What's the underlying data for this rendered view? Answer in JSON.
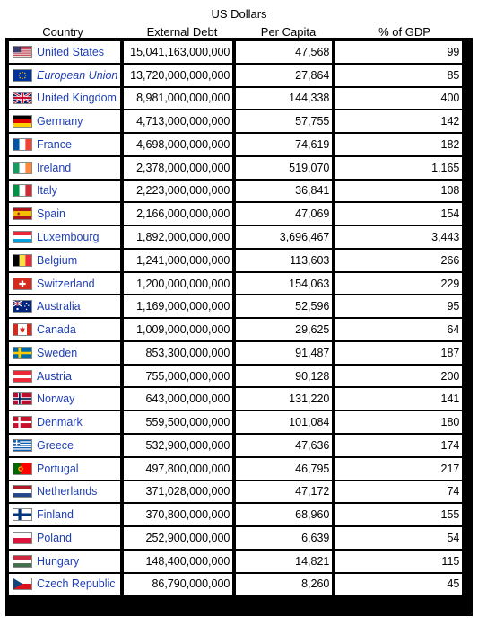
{
  "header": {
    "super": "US Dollars",
    "country": "Country",
    "external_debt": "External Debt",
    "per_capita": "Per Capita",
    "gdp": "% of GDP"
  },
  "rows": [
    {
      "country": "United States",
      "flag": "us-flag-icon",
      "debt": "15,041,163,000,000",
      "per_capita": "47,568",
      "gdp": "99",
      "italic": false
    },
    {
      "country": "European Union",
      "flag": "eu-flag-icon",
      "debt": "13,720,000,000,000",
      "per_capita": "27,864",
      "gdp": "85",
      "italic": true
    },
    {
      "country": "United Kingdom",
      "flag": "gb-flag-icon",
      "debt": "8,981,000,000,000",
      "per_capita": "144,338",
      "gdp": "400",
      "italic": false
    },
    {
      "country": "Germany",
      "flag": "de-flag-icon",
      "debt": "4,713,000,000,000",
      "per_capita": "57,755",
      "gdp": "142",
      "italic": false
    },
    {
      "country": "France",
      "flag": "fr-flag-icon",
      "debt": "4,698,000,000,000",
      "per_capita": "74,619",
      "gdp": "182",
      "italic": false
    },
    {
      "country": "Ireland",
      "flag": "ie-flag-icon",
      "debt": "2,378,000,000,000",
      "per_capita": "519,070",
      "gdp": "1,165",
      "italic": false
    },
    {
      "country": "Italy",
      "flag": "it-flag-icon",
      "debt": "2,223,000,000,000",
      "per_capita": "36,841",
      "gdp": "108",
      "italic": false
    },
    {
      "country": "Spain",
      "flag": "es-flag-icon",
      "debt": "2,166,000,000,000",
      "per_capita": "47,069",
      "gdp": "154",
      "italic": false
    },
    {
      "country": "Luxembourg",
      "flag": "lu-flag-icon",
      "debt": "1,892,000,000,000",
      "per_capita": "3,696,467",
      "gdp": "3,443",
      "italic": false
    },
    {
      "country": "Belgium",
      "flag": "be-flag-icon",
      "debt": "1,241,000,000,000",
      "per_capita": "113,603",
      "gdp": "266",
      "italic": false
    },
    {
      "country": "Switzerland",
      "flag": "ch-flag-icon",
      "debt": "1,200,000,000,000",
      "per_capita": "154,063",
      "gdp": "229",
      "italic": false
    },
    {
      "country": "Australia",
      "flag": "au-flag-icon",
      "debt": "1,169,000,000,000",
      "per_capita": "52,596",
      "gdp": "95",
      "italic": false
    },
    {
      "country": "Canada",
      "flag": "ca-flag-icon",
      "debt": "1,009,000,000,000",
      "per_capita": "29,625",
      "gdp": "64",
      "italic": false
    },
    {
      "country": "Sweden",
      "flag": "se-flag-icon",
      "debt": "853,300,000,000",
      "per_capita": "91,487",
      "gdp": "187",
      "italic": false
    },
    {
      "country": "Austria",
      "flag": "at-flag-icon",
      "debt": "755,000,000,000",
      "per_capita": "90,128",
      "gdp": "200",
      "italic": false
    },
    {
      "country": "Norway",
      "flag": "no-flag-icon",
      "debt": "643,000,000,000",
      "per_capita": "131,220",
      "gdp": "141",
      "italic": false
    },
    {
      "country": "Denmark",
      "flag": "dk-flag-icon",
      "debt": "559,500,000,000",
      "per_capita": "101,084",
      "gdp": "180",
      "italic": false
    },
    {
      "country": "Greece",
      "flag": "gr-flag-icon",
      "debt": "532,900,000,000",
      "per_capita": "47,636",
      "gdp": "174",
      "italic": false
    },
    {
      "country": "Portugal",
      "flag": "pt-flag-icon",
      "debt": "497,800,000,000",
      "per_capita": "46,795",
      "gdp": "217",
      "italic": false
    },
    {
      "country": "Netherlands",
      "flag": "nl-flag-icon",
      "debt": "371,028,000,000",
      "per_capita": "47,172",
      "gdp": "74",
      "italic": false
    },
    {
      "country": "Finland",
      "flag": "fi-flag-icon",
      "debt": "370,800,000,000",
      "per_capita": "68,960",
      "gdp": "155",
      "italic": false
    },
    {
      "country": "Poland",
      "flag": "pl-flag-icon",
      "debt": "252,900,000,000",
      "per_capita": "6,639",
      "gdp": "54",
      "italic": false
    },
    {
      "country": "Hungary",
      "flag": "hu-flag-icon",
      "debt": "148,400,000,000",
      "per_capita": "14,821",
      "gdp": "115",
      "italic": false
    },
    {
      "country": "Czech Republic",
      "flag": "cz-flag-icon",
      "debt": "86,790,000,000",
      "per_capita": "8,260",
      "gdp": "45",
      "italic": false
    }
  ]
}
